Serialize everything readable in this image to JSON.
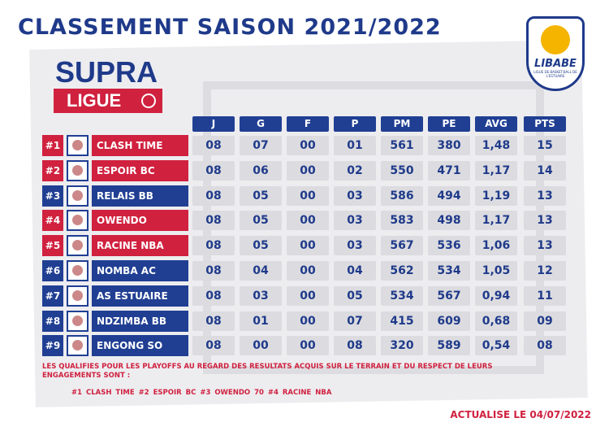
{
  "title": "CLASSEMENT SAISON 2021/2022",
  "league": {
    "name": "SUPRA",
    "sub": "LIGUE"
  },
  "brand": {
    "name": "LIBABE",
    "tagline": "LIGUE DE BASKET-BALL DE L'ESTUAIRE"
  },
  "colors": {
    "red": "#d0213f",
    "blue": "#203f93",
    "navy": "#1f3a8a",
    "cell": "#dcdce0"
  },
  "columns": [
    "J",
    "G",
    "F",
    "P",
    "PM",
    "PE",
    "AVG",
    "PTS"
  ],
  "rows": [
    {
      "rank": "#1",
      "team": "CLASH TIME",
      "color": "red",
      "values": [
        "08",
        "07",
        "00",
        "01",
        "561",
        "380",
        "1,48",
        "15"
      ]
    },
    {
      "rank": "#2",
      "team": "ESPOIR BC",
      "color": "red",
      "values": [
        "08",
        "06",
        "00",
        "02",
        "550",
        "471",
        "1,17",
        "14"
      ]
    },
    {
      "rank": "#3",
      "team": "RELAIS BB",
      "color": "blue",
      "values": [
        "08",
        "05",
        "00",
        "03",
        "586",
        "494",
        "1,19",
        "13"
      ]
    },
    {
      "rank": "#4",
      "team": "OWENDO",
      "color": "red",
      "values": [
        "08",
        "05",
        "00",
        "03",
        "583",
        "498",
        "1,17",
        "13"
      ]
    },
    {
      "rank": "#5",
      "team": "RACINE NBA",
      "color": "red",
      "values": [
        "08",
        "05",
        "00",
        "03",
        "567",
        "536",
        "1,06",
        "13"
      ]
    },
    {
      "rank": "#6",
      "team": "NOMBA AC",
      "color": "blue",
      "values": [
        "08",
        "04",
        "00",
        "04",
        "562",
        "534",
        "1,05",
        "12"
      ]
    },
    {
      "rank": "#7",
      "team": "AS ESTUAIRE",
      "color": "blue",
      "values": [
        "08",
        "03",
        "00",
        "05",
        "534",
        "567",
        "0,94",
        "11"
      ]
    },
    {
      "rank": "#8",
      "team": "NDZIMBA BB",
      "color": "blue",
      "values": [
        "08",
        "01",
        "00",
        "07",
        "415",
        "609",
        "0,68",
        "09"
      ]
    },
    {
      "rank": "#9",
      "team": "ENGONG SO",
      "color": "blue",
      "values": [
        "08",
        "00",
        "00",
        "08",
        "320",
        "589",
        "0,54",
        "08"
      ]
    }
  ],
  "note": "LES QUALIFIES POUR LES PLAYOFFS AU REGARD DES RESULTATS ACQUIS SUR LE TERRAIN ET DU RESPECT DE LEURS ENGAGEMENTS SONT :",
  "qualified": "#1 CLASH TIME  #2 ESPOIR BC  #3 OWENDO 70  #4 RACINE NBA",
  "updated": "ACTUALISE LE 04/07/2022"
}
